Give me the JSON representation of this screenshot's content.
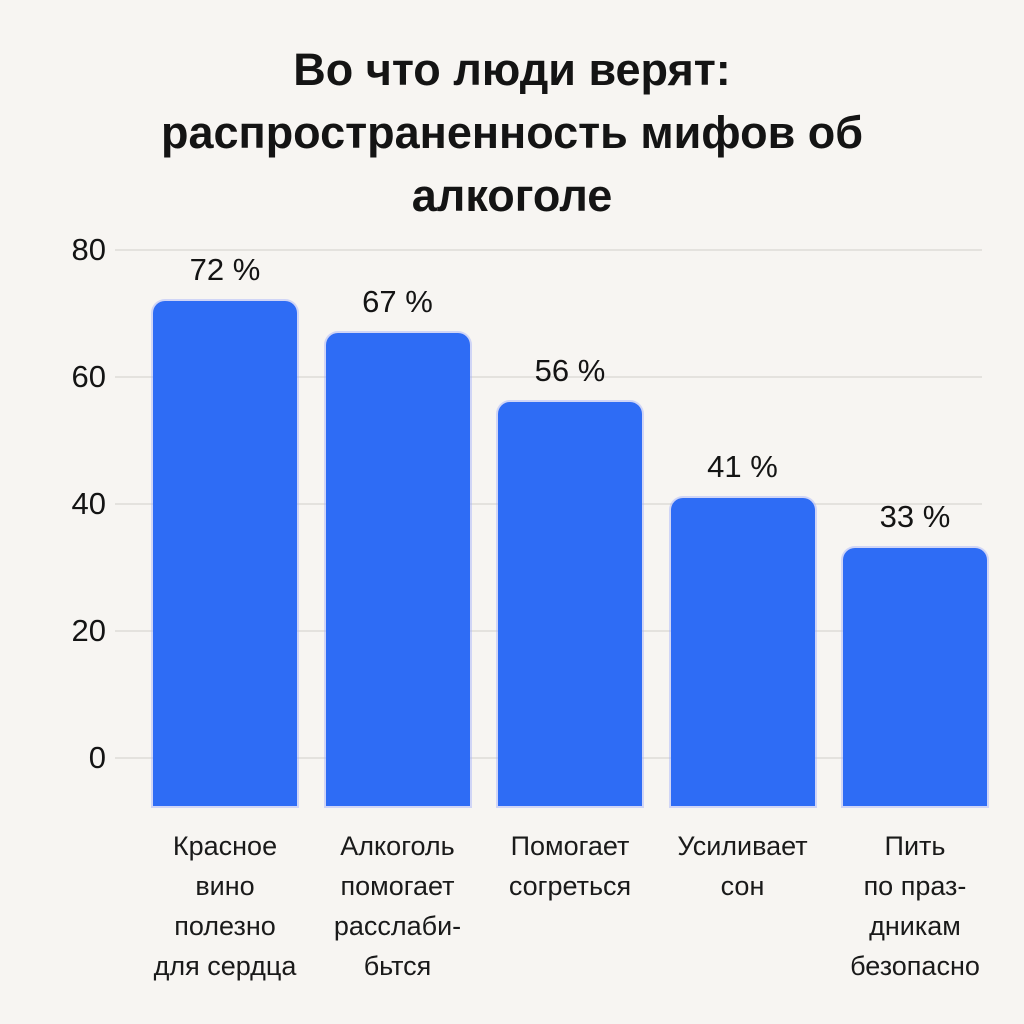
{
  "page": {
    "background": "#F7F5F2"
  },
  "chart_data": {
    "type": "bar",
    "title": "Во что люди верят: распространенность мифов об алкоголе",
    "title_lines": [
      "Во что люди верят:",
      "распространенность мифов об",
      "алкоголе"
    ],
    "categories": [
      "Красное вино полезно для сердца",
      "Алкоголь помогает расслаби-бьтся",
      "Помогает согреться",
      "Усиливает сон",
      "Пить по праз-дникам безопасно"
    ],
    "category_display_lines": [
      [
        "Красное",
        "вино",
        "полезно",
        "для сердца"
      ],
      [
        "Алкоголь",
        "помогает",
        "расслаби-",
        "бьтся"
      ],
      [
        "Помогает",
        "согреться"
      ],
      [
        "Усиливает",
        "сон"
      ],
      [
        "Пить",
        "по праз-",
        "дникам",
        "безопасно"
      ]
    ],
    "values": [
      72,
      67,
      56,
      41,
      33
    ],
    "value_labels": [
      "72 %",
      "67 %",
      "56 %",
      "41 %",
      "33 %"
    ],
    "unit": "%",
    "xlabel": "",
    "ylabel": "",
    "y_axis": {
      "ticks": [
        80,
        60,
        40,
        20,
        0
      ],
      "min": 0,
      "max": 80
    },
    "grid": true,
    "legend": false,
    "colors": {
      "bar": "#2E6CF5",
      "grid": "#E4E2DE",
      "text": "#141414",
      "background": "#F7F5F2"
    }
  }
}
